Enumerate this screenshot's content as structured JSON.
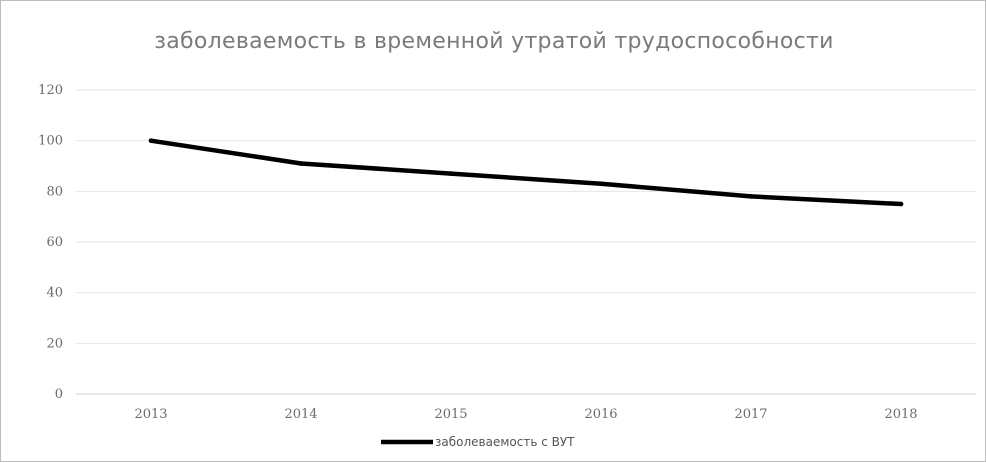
{
  "chart_data": {
    "type": "line",
    "title": "заболеваемость в временной утратой трудоспособности",
    "xlabel": "",
    "ylabel": "",
    "categories": [
      "2013",
      "2014",
      "2015",
      "2016",
      "2017",
      "2018"
    ],
    "series": [
      {
        "name": "заболеваемость с ВУТ",
        "values": [
          100,
          91,
          87,
          83,
          78,
          75
        ],
        "color": "#000000"
      }
    ],
    "ylim": [
      0,
      120
    ],
    "yticks": [
      0,
      20,
      40,
      60,
      80,
      100,
      120
    ],
    "grid": true,
    "legend_position": "bottom"
  }
}
